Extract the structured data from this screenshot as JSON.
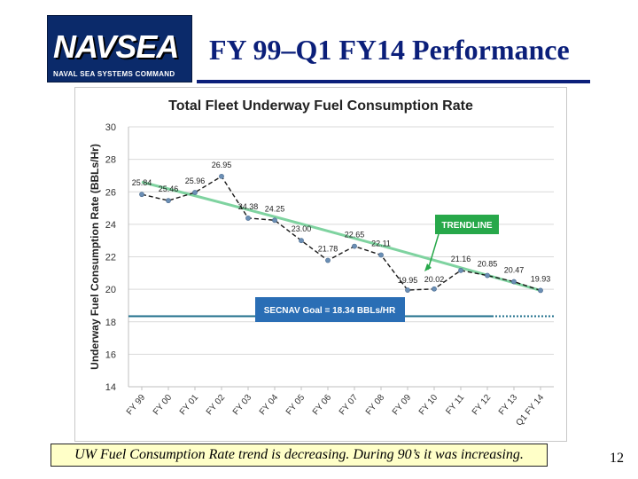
{
  "logo": {
    "text": "NAVSEA",
    "subtext": "NAVAL SEA SYSTEMS COMMAND"
  },
  "slide": {
    "title": "FY 99–Q1 FY14 Performance",
    "caption": "UW Fuel Consumption Rate trend is decreasing. During 90’s it was increasing.",
    "page_number": "12"
  },
  "colors": {
    "title": "#0b1f7a",
    "data_line": "#1a1a1a",
    "trendline": "#7fd3a0",
    "goal_line": "#1f6f8b",
    "callout_trend": "#27a84a",
    "callout_goal": "#2a6eb5",
    "caption_bg": "#ffffc8"
  },
  "chart_data": {
    "type": "line",
    "title": "Total Fleet Underway Fuel Consumption Rate",
    "ylabel": "Underway Fuel Consumption Rate (BBLs/Hr)",
    "xlabel": "",
    "ylim": [
      14,
      30
    ],
    "yticks": [
      14,
      16,
      18,
      20,
      22,
      24,
      26,
      28,
      30
    ],
    "grid": true,
    "categories": [
      "FY 99",
      "FY 00",
      "FY 01",
      "FY 02",
      "FY 03",
      "FY 04",
      "FY 05",
      "FY 06",
      "FY 07",
      "FY 08",
      "FY 09",
      "FY 10",
      "FY 11",
      "FY 12",
      "FY 13",
      "Q1 FY 14"
    ],
    "series": [
      {
        "values": [
          25.84,
          25.46,
          25.96,
          26.95,
          24.38,
          24.25,
          23.0,
          21.78,
          22.65,
          22.11,
          19.95,
          20.02,
          21.16,
          20.85,
          20.47,
          19.93
        ],
        "labels": [
          "25.84",
          "25.46",
          "25.96",
          "26.95",
          "24.38",
          "24.25",
          "23.00",
          "21.78",
          "22.65",
          "22.11",
          "19.95",
          "20.02",
          "21.16",
          "20.85",
          "20.47",
          "19.93"
        ]
      }
    ],
    "trendline": {
      "start": 26.6,
      "end": 19.93,
      "curvature": 0.55
    },
    "goal": {
      "value": 18.34
    },
    "annotations": {
      "trendline": "TRENDLINE",
      "goal": "SECNAV Goal = 18.34 BBLs/HR"
    }
  }
}
